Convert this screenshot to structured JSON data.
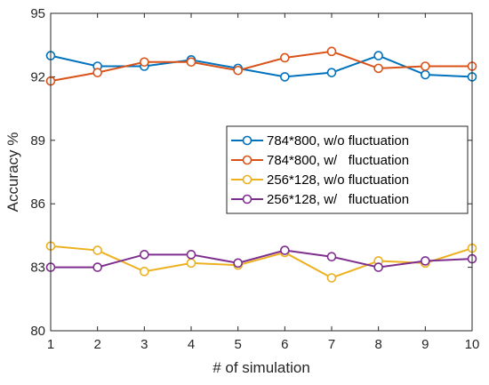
{
  "chart_data": {
    "type": "line",
    "title": "",
    "xlabel": "# of simulation",
    "ylabel": "Accuracy %",
    "x": [
      1,
      2,
      3,
      4,
      5,
      6,
      7,
      8,
      9,
      10
    ],
    "xlim": [
      1,
      10
    ],
    "ylim": [
      80,
      95
    ],
    "xticks": [
      "1",
      "2",
      "3",
      "4",
      "5",
      "6",
      "7",
      "8",
      "9",
      "10"
    ],
    "yticks": [
      "80",
      "83",
      "86",
      "89",
      "92",
      "95"
    ],
    "grid": false,
    "legend_position": "center-right",
    "series": [
      {
        "name": "784*800, w/o fluctuation",
        "color": "#0072BD",
        "marker": "circle",
        "values": [
          93.0,
          92.5,
          92.5,
          92.8,
          92.4,
          92.0,
          92.2,
          93.0,
          92.1,
          92.0
        ]
      },
      {
        "name": "784*800, w/   fluctuation",
        "color": "#D95319",
        "marker": "circle",
        "values": [
          91.8,
          92.2,
          92.7,
          92.7,
          92.3,
          92.9,
          93.2,
          92.4,
          92.5,
          92.5
        ]
      },
      {
        "name": "256*128, w/o fluctuation",
        "color": "#EDB120",
        "marker": "circle",
        "values": [
          84.0,
          83.8,
          82.8,
          83.2,
          83.1,
          83.7,
          82.5,
          83.3,
          83.2,
          83.9
        ]
      },
      {
        "name": "256*128, w/   fluctuation",
        "color": "#7E2F8E",
        "marker": "circle",
        "values": [
          83.0,
          83.0,
          83.6,
          83.6,
          83.2,
          83.8,
          83.5,
          83.0,
          83.3,
          83.4
        ]
      }
    ]
  }
}
